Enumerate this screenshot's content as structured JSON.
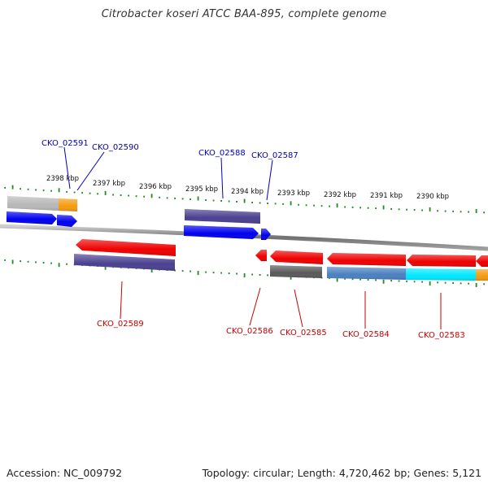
{
  "title": "Citrobacter koseri ATCC BAA-895, complete genome",
  "accession_label": "Accession: NC_009792",
  "topology_label": "Topology: circular; Length: 4,720,462 bp; Genes: 5,121",
  "colors": {
    "forward_label": "#0000c0",
    "reverse_label": "#cc0000",
    "tick": "#228b22",
    "backbone": "#808080",
    "gene_blue": "#0000ee",
    "gene_red": "#ee0000",
    "gene_navy": "#4a4090",
    "gene_gray": "#b8b8b8",
    "gene_orange": "#f59a10",
    "gene_darkgray": "#5a5a5a",
    "gene_steel": "#4a80c0",
    "gene_cyan": "#00e8ff"
  },
  "scale_labels": [
    "2398 kbp",
    "2397 kbp",
    "2396 kbp",
    "2395 kbp",
    "2394 kbp",
    "2393 kbp",
    "2392 kbp",
    "2391 kbp",
    "2390 kbp"
  ],
  "forward_genes": [
    {
      "id": "CKO_02591"
    },
    {
      "id": "CKO_02590"
    },
    {
      "id": "CKO_02588"
    },
    {
      "id": "CKO_02587"
    }
  ],
  "reverse_genes": [
    {
      "id": "CKO_02589"
    },
    {
      "id": "CKO_02586"
    },
    {
      "id": "CKO_02585"
    },
    {
      "id": "CKO_02584"
    },
    {
      "id": "CKO_02583"
    }
  ]
}
